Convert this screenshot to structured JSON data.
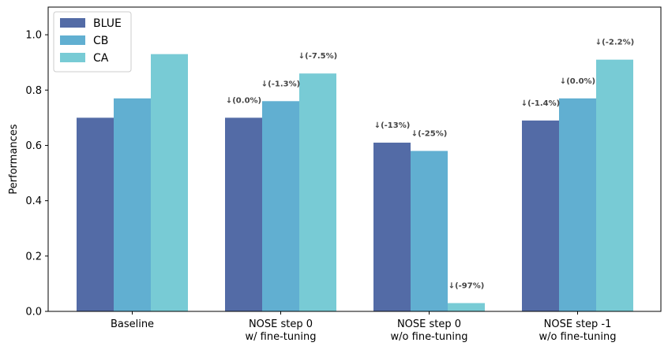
{
  "chart_data": {
    "type": "bar",
    "categories": [
      [
        "Baseline"
      ],
      [
        "NOSE step 0",
        "w/ fine-tuning"
      ],
      [
        "NOSE step 0",
        "w/o fine-tuning"
      ],
      [
        "NOSE step -1",
        "w/o fine-tuning"
      ]
    ],
    "series": [
      {
        "name": "BLUE",
        "color": "#536ba6",
        "values": [
          0.7,
          0.7,
          0.61,
          0.69
        ]
      },
      {
        "name": "CB",
        "color": "#61afd1",
        "values": [
          0.77,
          0.76,
          0.58,
          0.77
        ]
      },
      {
        "name": "CA",
        "color": "#78cbd5",
        "values": [
          0.93,
          0.86,
          0.03,
          0.91
        ]
      }
    ],
    "annotations": [
      [
        null,
        null,
        null
      ],
      [
        "↓(0.0%)",
        "↓(-1.3%)",
        "↓(-7.5%)"
      ],
      [
        "↓(-13%)",
        "↓(-25%)",
        "↓(-97%)"
      ],
      [
        "↓(-1.4%)",
        "↓(0.0%)",
        "↓(-2.2%)"
      ]
    ],
    "title": "",
    "xlabel": "",
    "ylabel": "Performances",
    "ylim": [
      0.0,
      1.1
    ],
    "yticks": [
      "0.0",
      "0.2",
      "0.4",
      "0.6",
      "0.8",
      "1.0"
    ],
    "grid": false,
    "legend_position": "top-left"
  }
}
